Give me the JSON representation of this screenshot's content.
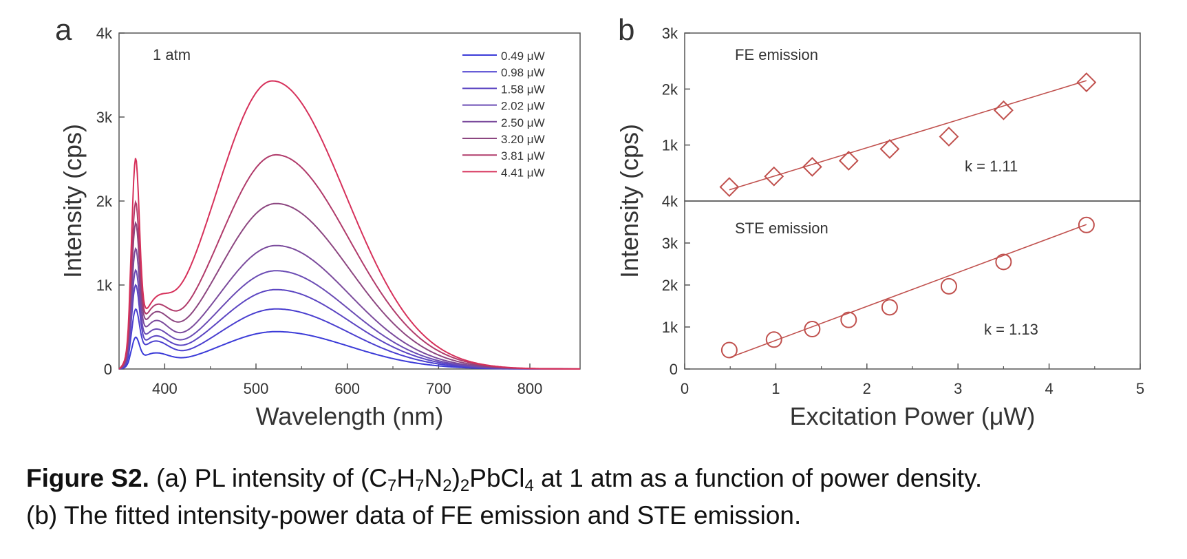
{
  "chart_data": [
    {
      "panel_label": "a",
      "type": "line",
      "annotation": "1 atm",
      "xlabel": "Wavelength (nm)",
      "ylabel": "Intensity (cps)",
      "xlim": [
        350,
        855
      ],
      "ylim": [
        0,
        4000
      ],
      "x_ticks": [
        "400",
        "500",
        "600",
        "700",
        "800"
      ],
      "y_ticks": [
        "0",
        "1k",
        "2k",
        "3k",
        "4k"
      ],
      "legend_position": "top-right",
      "grid": false,
      "series": [
        {
          "name": "0.49 μW",
          "color": "#3b3bd8",
          "fe_peak_nm": 368,
          "fe_peak": 290,
          "valley": 190,
          "ste_peak_nm": 522,
          "ste_peak": 445
        },
        {
          "name": "0.98 μW",
          "color": "#4a3fcf",
          "fe_peak_nm": 368,
          "fe_peak": 560,
          "valley": 330,
          "ste_peak_nm": 522,
          "ste_peak": 715
        },
        {
          "name": "1.58 μW",
          "color": "#5b45c2",
          "fe_peak_nm": 368,
          "fe_peak": 820,
          "valley": 390,
          "ste_peak_nm": 522,
          "ste_peak": 945
        },
        {
          "name": "2.02 μW",
          "color": "#6a4bb4",
          "fe_peak_nm": 368,
          "fe_peak": 960,
          "valley": 470,
          "ste_peak_nm": 522,
          "ste_peak": 1170
        },
        {
          "name": "2.50 μW",
          "color": "#7a4a9c",
          "fe_peak_nm": 368,
          "fe_peak": 1170,
          "valley": 570,
          "ste_peak_nm": 522,
          "ste_peak": 1470
        },
        {
          "name": "3.20 μW",
          "color": "#8c4680",
          "fe_peak_nm": 368,
          "fe_peak": 1430,
          "valley": 670,
          "ste_peak_nm": 522,
          "ste_peak": 1970
        },
        {
          "name": "3.81 μW",
          "color": "#b03a6a",
          "fe_peak_nm": 368,
          "fe_peak": 1640,
          "valley": 750,
          "ste_peak_nm": 522,
          "ste_peak": 2550
        },
        {
          "name": "4.41 μW",
          "color": "#d6305a",
          "fe_peak_nm": 368,
          "fe_peak": 2120,
          "valley": 830,
          "ste_peak_nm": 518,
          "ste_peak": 3430
        }
      ]
    },
    {
      "panel_label": "b",
      "type": "scatter",
      "xlabel": "Excitation Power (μW)",
      "ylabel": "Intensity (cps)",
      "xlim": [
        0,
        5
      ],
      "x_ticks": [
        "0",
        "1",
        "2",
        "3",
        "4",
        "5"
      ],
      "grid": false,
      "color": "#c0504d",
      "subplots": [
        {
          "label": "FE emission",
          "marker": "diamond",
          "ylim": [
            0,
            3000
          ],
          "y_ticks": [
            "3k",
            "2k",
            "1k"
          ],
          "bottom_tick": "4k",
          "annotation": "k = 1.11",
          "x": [
            0.49,
            0.98,
            1.4,
            1.8,
            2.25,
            2.9,
            3.5,
            4.41
          ],
          "y": [
            250,
            440,
            610,
            720,
            930,
            1150,
            1620,
            2120
          ],
          "fit_line": [
            [
              0.49,
              200
            ],
            [
              4.41,
              2150
            ]
          ]
        },
        {
          "label": "STE emission",
          "marker": "circle",
          "ylim": [
            0,
            4000
          ],
          "y_ticks": [
            "3k",
            "2k",
            "1k",
            "0"
          ],
          "annotation": "k = 1.13",
          "x": [
            0.49,
            0.98,
            1.4,
            1.8,
            2.25,
            2.9,
            3.5,
            4.41
          ],
          "y": [
            450,
            700,
            950,
            1170,
            1470,
            1970,
            2550,
            3430
          ],
          "fit_line": [
            [
              0.49,
              270
            ],
            [
              4.41,
              3440
            ]
          ]
        }
      ]
    }
  ],
  "caption": {
    "label": "Figure S2.",
    "line1_a": " (a) PL intensity of (C",
    "sub1": "7",
    "t1": "H",
    "sub2": "7",
    "t2": "N",
    "sub3": "2",
    "t3": ")",
    "sub4": "2",
    "t4": "PbCl",
    "sub5": "4",
    "line1_end": " at 1 atm as a function of power density.",
    "line2": "(b) The fitted intensity-power data of FE emission and STE emission."
  }
}
